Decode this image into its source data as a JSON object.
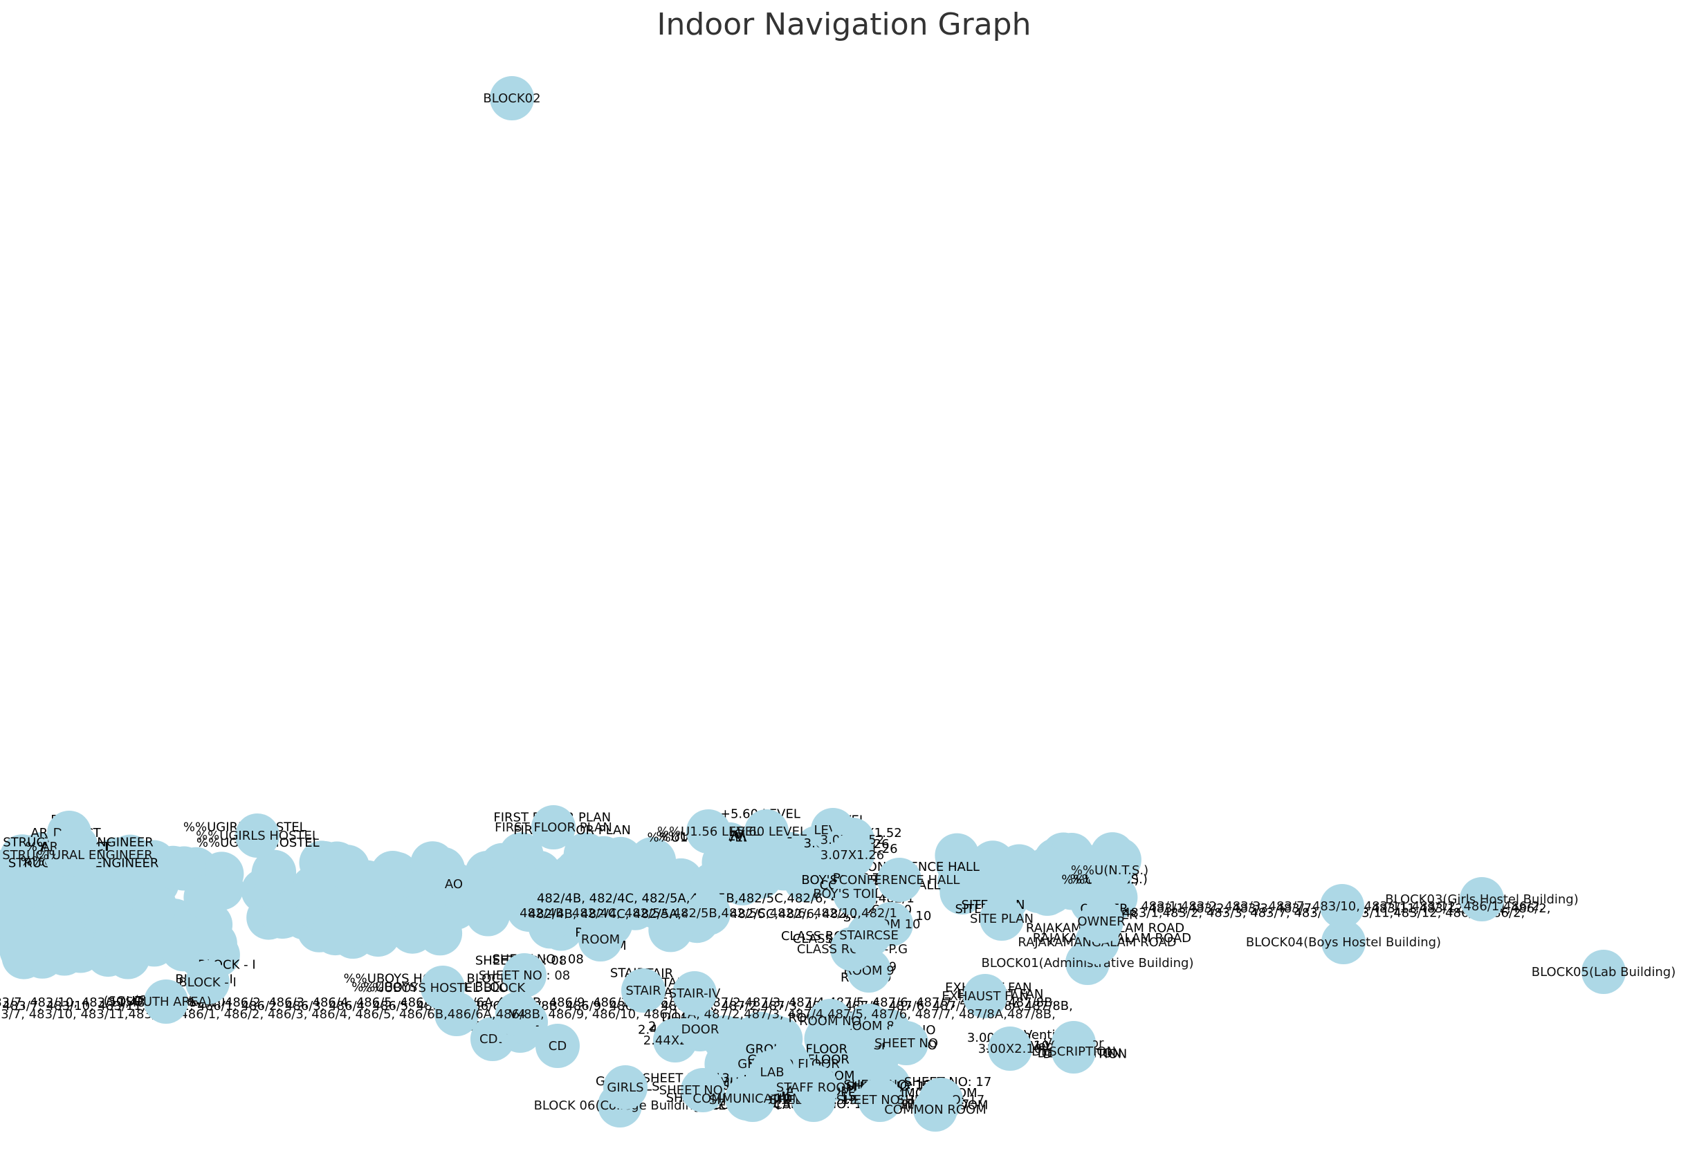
{
  "title": "Indoor Navigation Graph",
  "node_color": "#add8e6",
  "label_color": "#000000",
  "nodes": [
    {
      "label": "BLOCK02"
    },
    {
      "label": "BLOCK03(Girls Hostel Building)"
    },
    {
      "label": "BLOCK04(Boys Hostel Building)"
    },
    {
      "label": "BLOCK05(Lab Building)"
    },
    {
      "label": "BLOCK 06(College Building)"
    },
    {
      "label": "BLOCK01(Administrative Building)"
    },
    {
      "label": "SHEET NO: 13"
    },
    {
      "label": "SHEET NO: 14"
    },
    {
      "label": "SHEET NO: 15"
    },
    {
      "label": "SHEET NO: 16"
    },
    {
      "label": "SHEET NO: 17"
    },
    {
      "label": "ROOM 8"
    },
    {
      "label": "ROOM 9"
    },
    {
      "label": "ROOM 10"
    },
    {
      "label": "CLASS ROOM -P.G"
    },
    {
      "label": "STAIRCSE"
    },
    {
      "label": "ROOM"
    },
    {
      "label": "BOY'S TOILET"
    },
    {
      "label": "SHEET NO : 08"
    },
    {
      "label": "CD"
    },
    {
      "label": "CD1"
    },
    {
      "label": "SW1"
    },
    {
      "label": "SW2"
    },
    {
      "label": "V4"
    },
    {
      "label": "Ventilator"
    },
    {
      "label": "EXHAUST FAN"
    },
    {
      "label": "SITE PLAN"
    },
    {
      "label": "DESCRIPTION"
    },
    {
      "label": "RAJAKAMANGALAM ROAD"
    },
    {
      "label": "OWNER"
    },
    {
      "label": "LEVEL"
    },
    {
      "label": "3.07X1.52"
    },
    {
      "label": "3.07X1.26"
    },
    {
      "label": "DATE"
    },
    {
      "label": "AO"
    },
    {
      "label": "CONFERENCE HALL"
    },
    {
      "label": "STAIR"
    },
    {
      "label": "FIRST FLOOR PLAN"
    },
    {
      "label": "%%UBOYS HOSTEL BLOCK"
    },
    {
      "label": "COMMON ROOM"
    },
    {
      "label": "ROOM NO"
    },
    {
      "label": "3.00X2.10"
    },
    {
      "label": "2.44X2.44"
    },
    {
      "label": "DOOR"
    },
    {
      "label": "SHEET NO"
    },
    {
      "label": "%%U(N.T.S.)"
    },
    {
      "label": "482/4B, 482/4C, 482/5A,482/5B,482/5C,482/6, 482/10,482/1"
    },
    {
      "label": "483/1,483/2, 483/3, 483/7, 483/10, 483/11,483/12, 486/1,486/2,"
    },
    {
      "label": "482/1,483/2, 483/3, 483/7, 483/10, 483/11,483/12, 486/1, 486/2, 486/3, 486/4, 486/5, 486/6B,486/6A,486/8B, 486/9, 486/10, 486/11A, 487/2,487/3, 487/4,487/5, 487/6, 487/7, 487/8A,487/8B,"
    },
    {
      "label": "%%UEXG"
    },
    {
      "label": "%%UGIRLS HOSTEL"
    },
    {
      "label": "BLOCK - I"
    },
    {
      "label": "ARCHITECT"
    },
    {
      "label": "STRUCTURAL ENGINEER"
    },
    {
      "label": "(SOUTH AREA)"
    },
    {
      "label": "STAIR-IV"
    },
    {
      "label": "GROUND FLOOR"
    },
    {
      "label": "COMMUNICATION"
    },
    {
      "label": "LAB"
    },
    {
      "label": "STAFF ROOM"
    },
    {
      "label": "GIRLS"
    },
    {
      "label": "+5.60 LEVEL"
    },
    {
      "label": "%%U1.56 LEVEL"
    }
  ]
}
